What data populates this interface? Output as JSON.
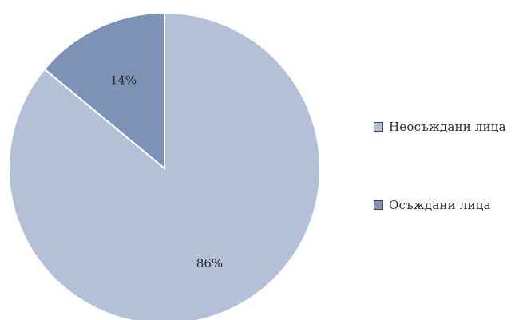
{
  "chart_data": {
    "type": "pie",
    "start_angle_deg": 0,
    "direction": "clockwise",
    "slices": [
      {
        "label": "Неосъждани лица",
        "value": 86,
        "display": "86%",
        "color": "#b4c0d8"
      },
      {
        "label": "Осъждани лица",
        "value": 14,
        "display": "14%",
        "color": "#7c92b7"
      }
    ],
    "legend": {
      "position": "right",
      "items": [
        {
          "label": "Неосъждани лица",
          "color": "#b4c0d8"
        },
        {
          "label": "Осъждани лица",
          "color": "#7c92b7"
        }
      ]
    },
    "slice_border_color": "#ffffff"
  }
}
